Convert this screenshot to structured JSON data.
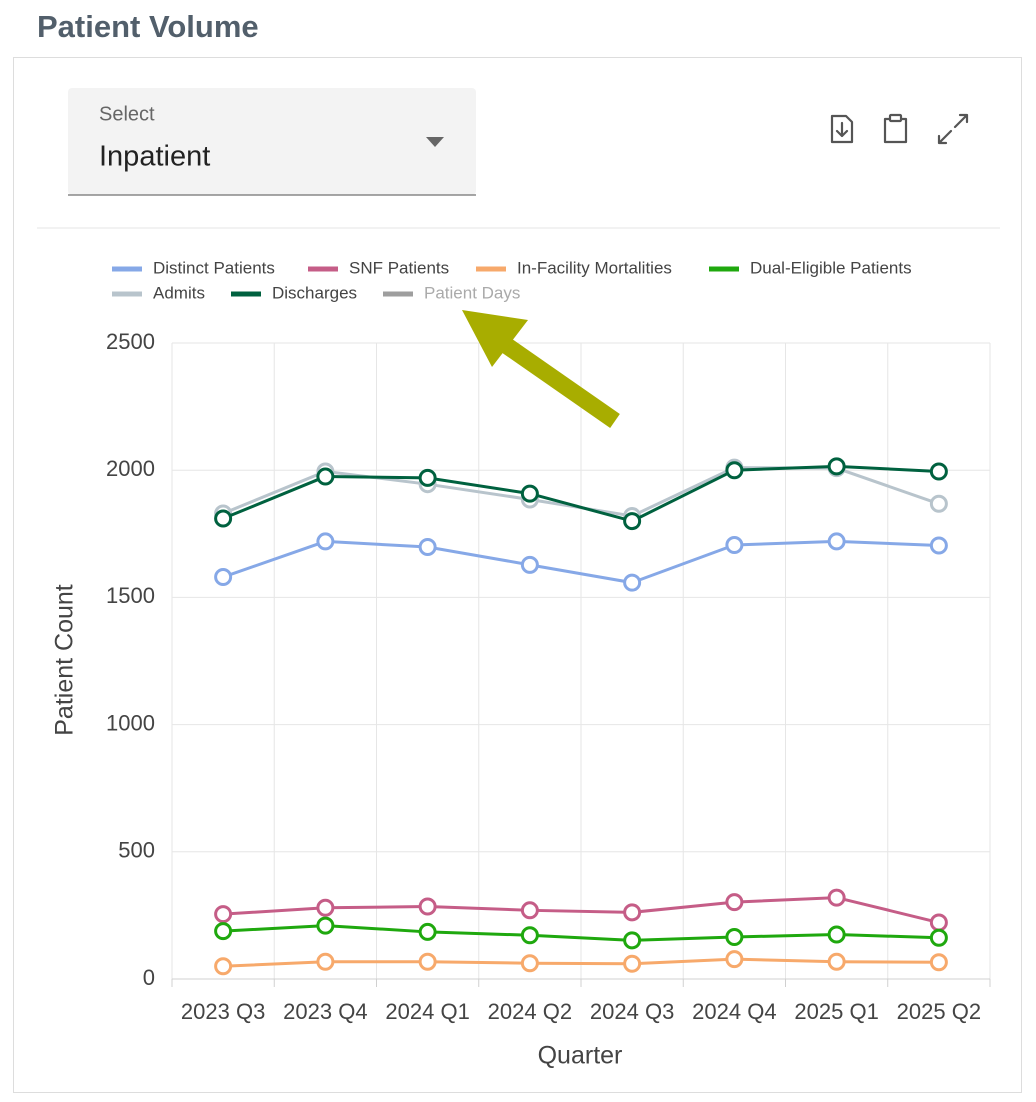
{
  "header": {
    "title": "Patient Volume"
  },
  "select": {
    "label": "Select",
    "value": "Inpatient"
  },
  "chart_data": {
    "type": "line",
    "x_label": "Quarter",
    "y_label": "Patient Count",
    "categories": [
      "2023 Q3",
      "2023 Q4",
      "2024 Q1",
      "2024 Q2",
      "2024 Q3",
      "2024 Q4",
      "2025 Q1",
      "2025 Q2"
    ],
    "ylim": [
      0,
      2500
    ],
    "yticks": [
      0,
      500,
      1000,
      1500,
      2000,
      2500
    ],
    "grid": true,
    "legend": "top",
    "series": [
      {
        "name": "Distinct Patients",
        "color": "#86a8e7",
        "values": [
          1580,
          1720,
          1698,
          1628,
          1558,
          1706,
          1720,
          1704
        ]
      },
      {
        "name": "SNF Patients",
        "color": "#c55d87",
        "values": [
          255,
          280,
          285,
          270,
          262,
          302,
          320,
          222
        ]
      },
      {
        "name": "In-Facility Mortalities",
        "color": "#f7a96b",
        "values": [
          50,
          68,
          68,
          62,
          60,
          78,
          68,
          66
        ]
      },
      {
        "name": "Dual-Eligible Patients",
        "color": "#1fa80e",
        "values": [
          188,
          210,
          185,
          172,
          152,
          165,
          175,
          162
        ]
      },
      {
        "name": "Admits",
        "color": "#b8c4cc",
        "values": [
          1830,
          1995,
          1945,
          1885,
          1820,
          2010,
          2008,
          1868
        ]
      },
      {
        "name": "Discharges",
        "color": "#00613f",
        "values": [
          1810,
          1975,
          1970,
          1908,
          1800,
          2000,
          2015,
          1995
        ]
      },
      {
        "name": "Patient Days",
        "color": "#9e9e9e",
        "visible": false,
        "values": [
          null,
          null,
          null,
          null,
          null,
          null,
          null,
          null
        ]
      }
    ]
  }
}
